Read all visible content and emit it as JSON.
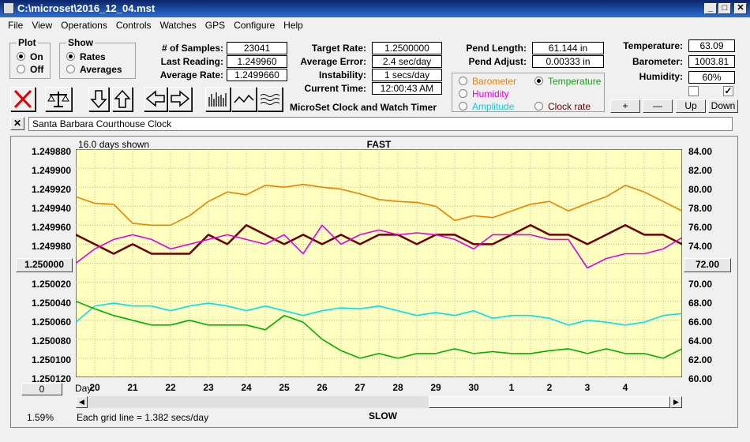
{
  "window": {
    "title": "C:\\microset\\2016_12_04.mst"
  },
  "menu": [
    "File",
    "View",
    "Operations",
    "Controls",
    "Watches",
    "GPS",
    "Configure",
    "Help"
  ],
  "plot_group": {
    "title": "Plot",
    "on": "On",
    "off": "Off",
    "selected": "on"
  },
  "show_group": {
    "title": "Show",
    "rates": "Rates",
    "averages": "Averages",
    "selected": "rates"
  },
  "stats": {
    "samples_label": "# of Samples:",
    "samples": "23041",
    "last_label": "Last Reading:",
    "last": "1.249960",
    "avg_label": "Average Rate:",
    "avg": "1.2499660",
    "target_label": "Target Rate:",
    "target": "1.2500000",
    "avg_err_label": "Average Error:",
    "avg_err": "2.4 sec/day",
    "instab_label": "Instability:",
    "instab": "1 secs/day",
    "time_label": "Current Time:",
    "time": "12:00:43 AM",
    "pend_len_label": "Pend Length:",
    "pend_len": "61.144 in",
    "pend_adj_label": "Pend Adjust:",
    "pend_adj": "0.00333 in",
    "temp_label": "Temperature:",
    "temp": "63.09",
    "baro_label": "Barometer:",
    "baro": "1003.81",
    "hum_label": "Humidity:",
    "hum": "60%"
  },
  "app_caption": "MicroSet Clock and Watch Timer",
  "sensor_group": {
    "barometer": "Barometer",
    "temperature": "Temperature",
    "humidity": "Humidity",
    "amplitude": "Amplitude",
    "clock_rate": "Clock rate",
    "selected": "temperature"
  },
  "buttons": {
    "plus": "+",
    "minus": "—",
    "up": "Up",
    "down": "Down"
  },
  "note": {
    "close": "✕",
    "text": "Santa Barbara Courthouse Clock"
  },
  "chart": {
    "days_shown": "16.0 days shown",
    "fast": "FAST",
    "slow": "SLOW",
    "grid_text": "Each grid line = 1.382 secs/day",
    "left_button": "1.250000",
    "right_button": "72.00",
    "bottom_left_button": "0",
    "percent": "1.59%",
    "day_label": "Day:"
  },
  "colors": {
    "plot_bg": "#ffffc0",
    "rate": "#6b0000",
    "temperature": "#00b000",
    "barometer": "#f08000",
    "humidity": "#e000e0",
    "amplitude": "#00e0f0"
  },
  "chart_data": {
    "type": "line",
    "x_label": "Day:",
    "x_ticks": [
      "20",
      "21",
      "22",
      "23",
      "24",
      "25",
      "26",
      "27",
      "28",
      "29",
      "30",
      "1",
      "2",
      "3",
      "4"
    ],
    "y_left_ticks": [
      "1.249880",
      "1.249900",
      "1.249920",
      "1.249940",
      "1.249960",
      "1.249980",
      "1.250000",
      "1.250020",
      "1.250040",
      "1.250060",
      "1.250080",
      "1.250100",
      "1.250120"
    ],
    "y_right_ticks": [
      "84.00",
      "82.00",
      "80.00",
      "78.00",
      "76.00",
      "74.00",
      "72.00",
      "70.00",
      "68.00",
      "66.00",
      "64.00",
      "62.00",
      "60.00"
    ],
    "y_left_range": [
      1.24988,
      1.25012
    ],
    "y_right_range": [
      60,
      84
    ],
    "x_range": [
      0,
      16
    ],
    "series": [
      {
        "color": "#f08000",
        "x": [
          0,
          0.5,
          1,
          1.5,
          2,
          2.5,
          3,
          3.5,
          4,
          4.5,
          5,
          5.5,
          6,
          6.5,
          7,
          7.5,
          8,
          8.5,
          9,
          9.5,
          10,
          10.5,
          11,
          11.5,
          12,
          12.5,
          13,
          13.5,
          14,
          14.5,
          15,
          15.5,
          16
        ],
        "y": [
          79,
          78.3,
          78.2,
          76.2,
          76,
          76,
          77,
          78.5,
          79.5,
          79.2,
          80.2,
          80,
          80.3,
          80,
          79.8,
          79.3,
          78.7,
          78.5,
          78.4,
          78,
          76.5,
          77,
          76.8,
          77.5,
          78.2,
          78.5,
          77.5,
          78.3,
          79,
          80.2,
          79.5,
          78.5,
          77.5
        ]
      },
      {
        "color": "#6b0000",
        "x": [
          0,
          0.5,
          1,
          1.5,
          2,
          2.5,
          3,
          3.5,
          4,
          4.5,
          5,
          5.5,
          6,
          6.5,
          7,
          7.5,
          8,
          8.5,
          9,
          9.5,
          10,
          10.5,
          11,
          11.5,
          12,
          12.5,
          13,
          13.5,
          14,
          14.5,
          15,
          15.5,
          16
        ],
        "y": [
          1.24997,
          1.24998,
          1.24999,
          1.24998,
          1.24999,
          1.24999,
          1.24999,
          1.24997,
          1.24998,
          1.24996,
          1.24997,
          1.24998,
          1.24997,
          1.24998,
          1.24997,
          1.24998,
          1.24997,
          1.24997,
          1.24998,
          1.24997,
          1.24997,
          1.24998,
          1.24998,
          1.24997,
          1.24996,
          1.24997,
          1.24997,
          1.24998,
          1.24997,
          1.24996,
          1.24997,
          1.24997,
          1.24998
        ]
      },
      {
        "color": "#e000e0",
        "x": [
          0,
          0.5,
          1,
          1.5,
          2,
          2.5,
          3,
          3.5,
          4,
          4.5,
          5,
          5.5,
          6,
          6.5,
          7,
          7.5,
          8,
          8.5,
          9,
          9.5,
          10,
          10.5,
          11,
          11.5,
          12,
          12.5,
          13,
          13.5,
          14,
          14.5,
          15,
          15.5,
          16
        ],
        "y": [
          72,
          73.5,
          74.5,
          75,
          74.5,
          73.5,
          74,
          74.5,
          75,
          74.5,
          74,
          75,
          73,
          76,
          74,
          75,
          75.5,
          75,
          75.2,
          75,
          74.5,
          73.5,
          75,
          75,
          75,
          74.5,
          74.5,
          71.5,
          72.5,
          73,
          73,
          73.5,
          74.7
        ]
      },
      {
        "color": "#00e0f0",
        "x": [
          0,
          0.5,
          1,
          1.5,
          2,
          2.5,
          3,
          3.5,
          4,
          4.5,
          5,
          5.5,
          6,
          6.5,
          7,
          7.5,
          8,
          8.5,
          9,
          9.5,
          10,
          10.5,
          11,
          11.5,
          12,
          12.5,
          13,
          13.5,
          14,
          14.5,
          15,
          15.5,
          16
        ],
        "y": [
          65.8,
          67.5,
          67.8,
          67.5,
          67.5,
          67,
          67.5,
          67.8,
          67.5,
          67,
          67.5,
          67,
          66.5,
          67,
          67.3,
          67.2,
          67.5,
          67,
          66.5,
          66.8,
          66.5,
          67,
          66.2,
          66.5,
          66.5,
          66.2,
          65.5,
          66,
          65.8,
          65.5,
          65.8,
          66.5,
          66.7
        ]
      },
      {
        "color": "#00b000",
        "x": [
          0,
          0.5,
          1,
          1.5,
          2,
          2.5,
          3,
          3.5,
          4,
          4.5,
          5,
          5.5,
          6,
          6.5,
          7,
          7.5,
          8,
          8.5,
          9,
          9.5,
          10,
          10.5,
          11,
          11.5,
          12,
          12.5,
          13,
          13.5,
          14,
          14.5,
          15,
          15.5,
          16
        ],
        "y": [
          68,
          67.2,
          66.5,
          66,
          65.5,
          65.5,
          66,
          65.5,
          65.5,
          65.5,
          65,
          66.5,
          65.8,
          64,
          62.8,
          62,
          62.5,
          62,
          62.5,
          62.5,
          63,
          62.5,
          62.7,
          62.5,
          62.5,
          62.8,
          63,
          62.5,
          63,
          62.5,
          62.5,
          62,
          63
        ]
      }
    ]
  }
}
